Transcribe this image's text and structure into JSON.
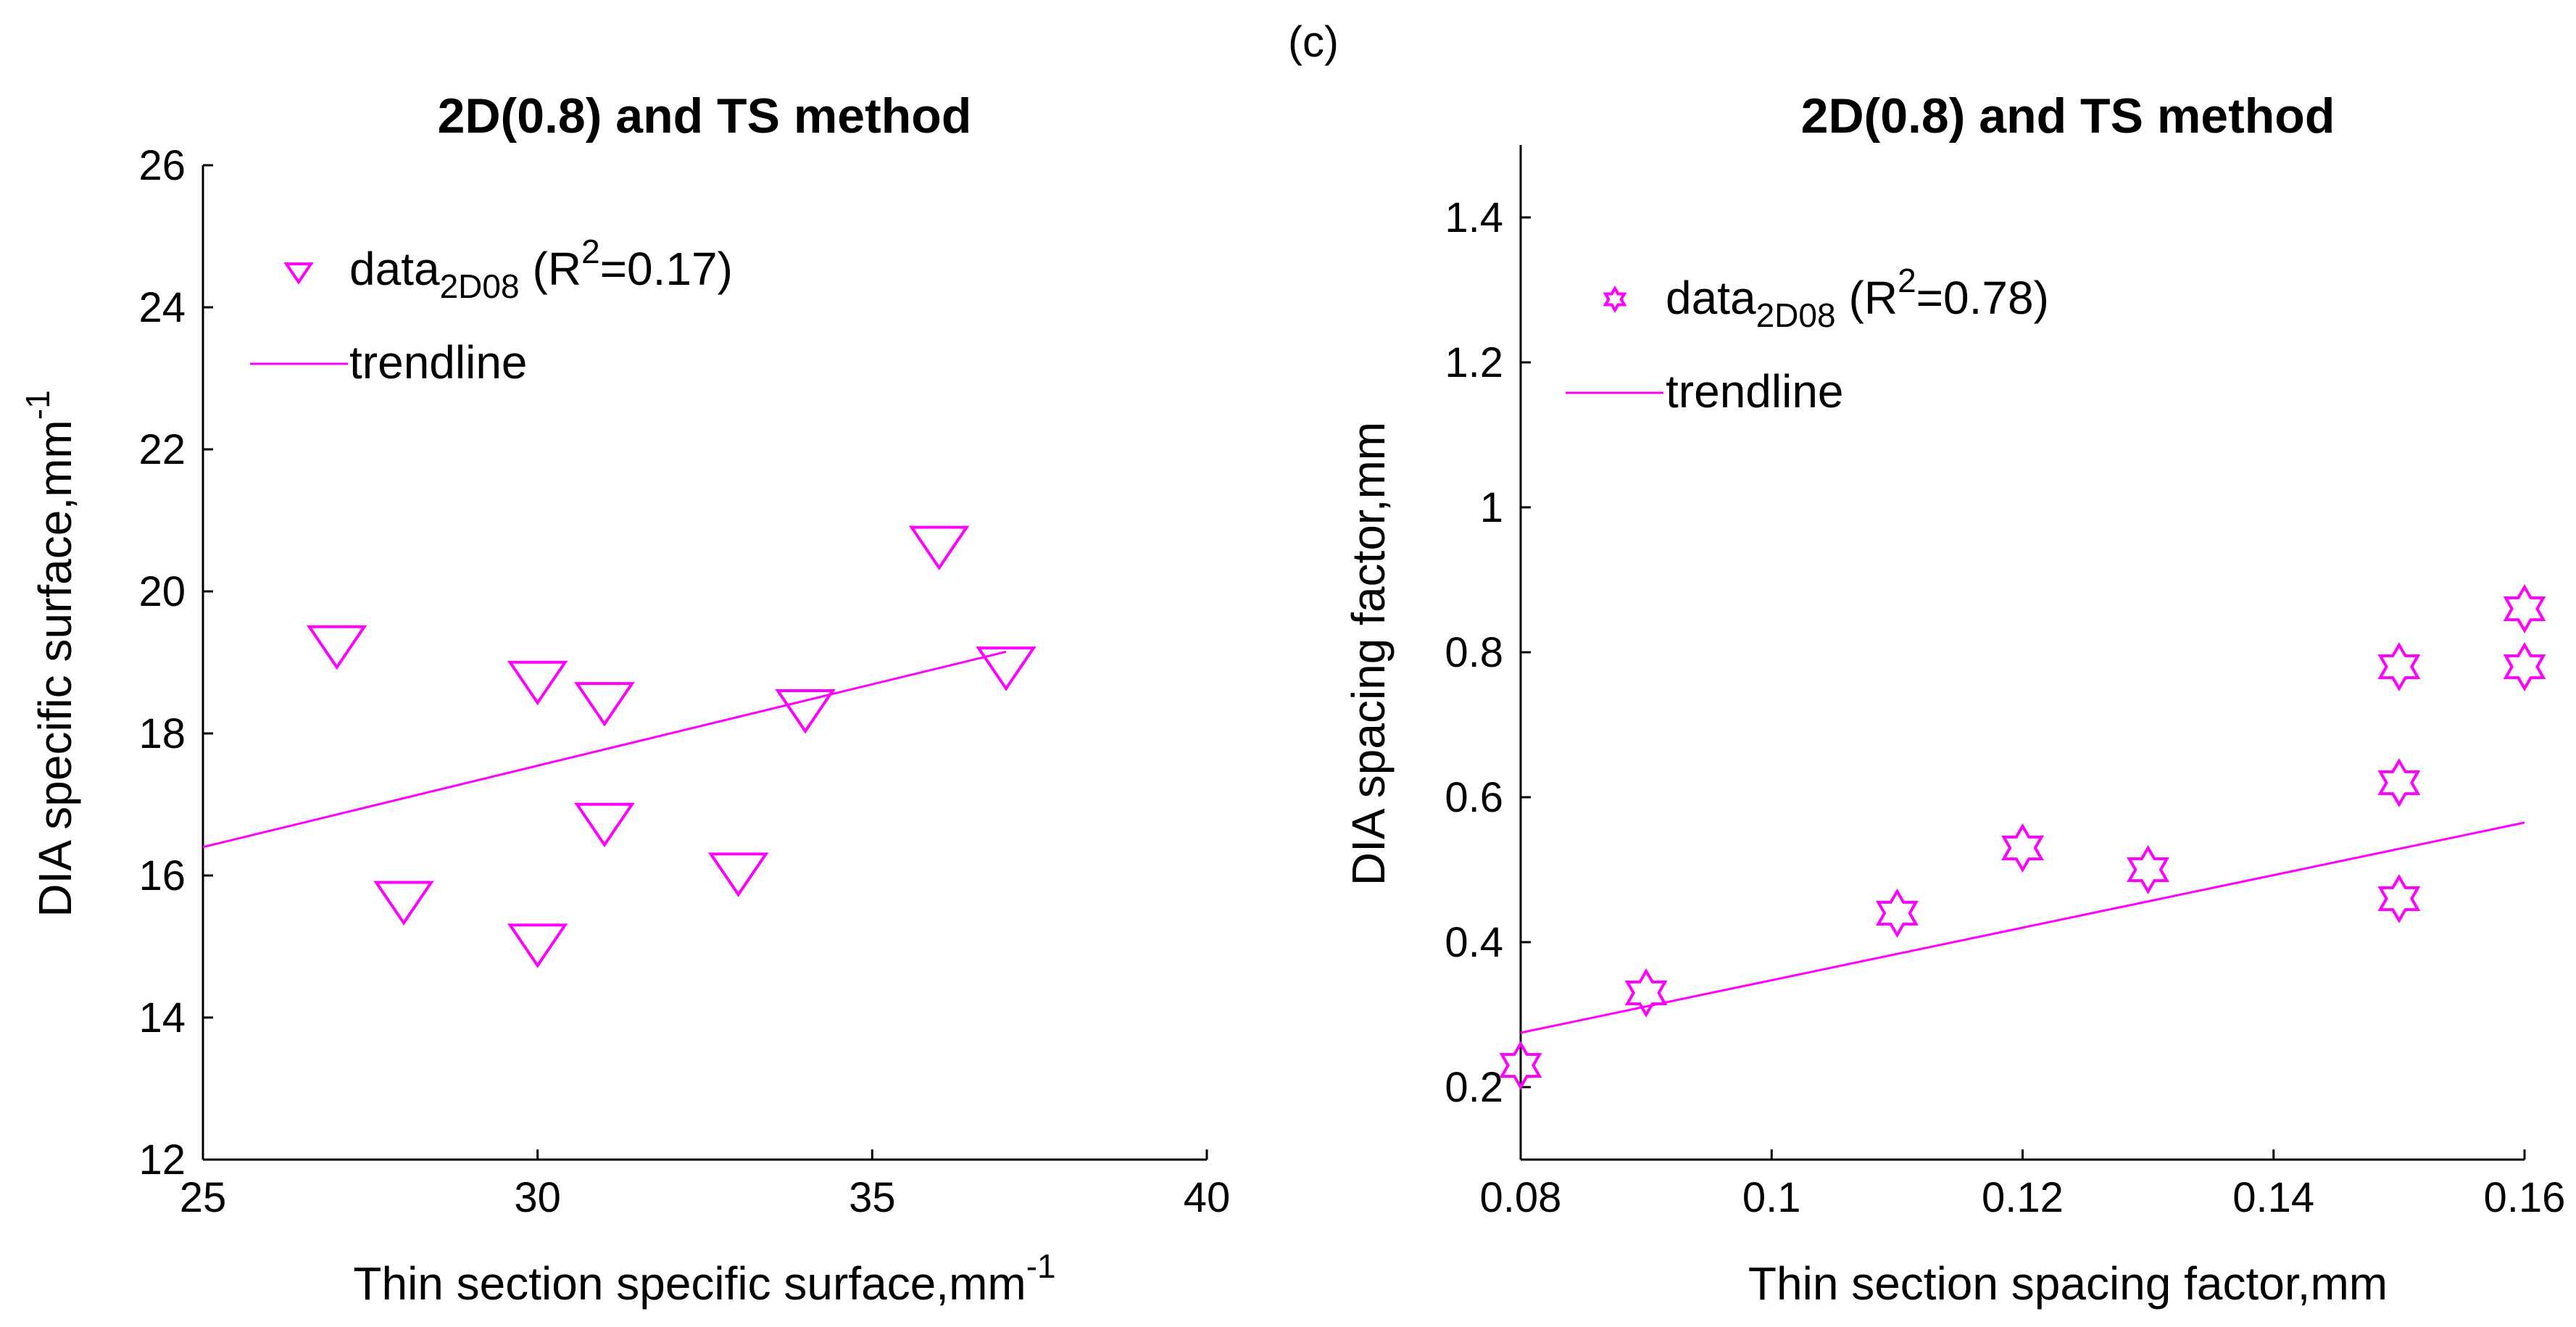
{
  "figure": {
    "panel_label": "(c)"
  },
  "colors": {
    "series": "#ff00ff",
    "axis": "#000000",
    "background": "#ffffff"
  },
  "chart_data": [
    {
      "type": "scatter",
      "title": "2D(0.8) and TS method",
      "xlabel": {
        "text": "Thin section specific surface,mm",
        "superscript": "-1"
      },
      "ylabel": {
        "text": "DIA specific surface,mm",
        "superscript": "-1"
      },
      "xlim": [
        25,
        40
      ],
      "ylim": [
        12,
        26
      ],
      "xticks": [
        25,
        30,
        35,
        40
      ],
      "yticks": [
        12,
        14,
        16,
        18,
        20,
        22,
        24,
        26
      ],
      "xtick_labels": [
        "25",
        "30",
        "35",
        "40"
      ],
      "ytick_labels": [
        "12",
        "14",
        "16",
        "18",
        "20",
        "22",
        "24",
        "26"
      ],
      "marker": "triangle-down",
      "series": [
        {
          "name": "data2D08",
          "x": [
            27,
            28,
            30,
            30,
            31,
            31,
            33,
            34,
            36,
            37
          ],
          "y": [
            19.3,
            15.7,
            18.8,
            15.1,
            18.5,
            16.8,
            16.1,
            18.4,
            20.7,
            19.0
          ]
        }
      ],
      "trendline": {
        "name": "trendline",
        "x": [
          25,
          37
        ],
        "y": [
          16.4,
          19.15
        ]
      },
      "legend": {
        "location": "top-left",
        "data": {
          "label": "data",
          "subscript": "2D08",
          "r2_prefix": "(R",
          "r2_exp": "2",
          "r2_suffix": "=0.17)"
        },
        "trend": "trendline"
      }
    },
    {
      "type": "scatter",
      "title": "2D(0.8) and TS method",
      "xlabel": {
        "text": "Thin section spacing factor,mm"
      },
      "ylabel": {
        "text": "DIA spacing factor,mm"
      },
      "xlim": [
        0.08,
        0.16
      ],
      "ylim": [
        0.1,
        1.5
      ],
      "xticks": [
        0.08,
        0.1,
        0.12,
        0.14,
        0.16
      ],
      "yticks": [
        0.2,
        0.4,
        0.6,
        0.8,
        1.0,
        1.2,
        1.4
      ],
      "xtick_labels": [
        "0.08",
        "0.1",
        "0.12",
        "0.14",
        "0.16"
      ],
      "ytick_labels": [
        "0.2",
        "0.4",
        "0.6",
        "0.8",
        "1",
        "1.2",
        "1.4"
      ],
      "marker": "hexagram",
      "series": [
        {
          "name": "data2D08",
          "x": [
            0.08,
            0.09,
            0.11,
            0.12,
            0.13,
            0.15,
            0.15,
            0.15,
            0.16,
            0.16
          ],
          "y": [
            0.23,
            0.33,
            0.44,
            0.53,
            0.5,
            0.78,
            0.62,
            0.46,
            0.86,
            0.78
          ]
        }
      ],
      "trendline": {
        "name": "trendline",
        "x": [
          0.08,
          0.16
        ],
        "y": [
          0.275,
          0.565
        ]
      },
      "legend": {
        "location": "top-left",
        "data": {
          "label": "data",
          "subscript": "2D08",
          "r2_prefix": "(R",
          "r2_exp": "2",
          "r2_suffix": "=0.78)"
        },
        "trend": "trendline"
      }
    }
  ]
}
